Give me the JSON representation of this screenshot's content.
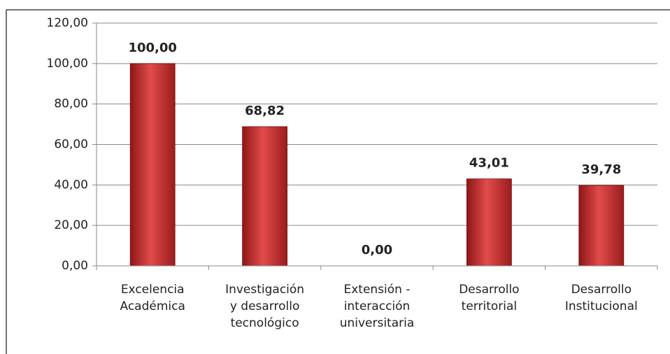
{
  "chart_data": {
    "type": "bar",
    "categories": [
      "Excelencia\nAcadémica",
      "Investigación\ny desarrollo\ntecnológico",
      "Extensión -\ninteracción\nuniversitaria",
      "Desarrollo\nterritorial",
      "Desarrollo\nInstitucional"
    ],
    "values": [
      100,
      68.82,
      0,
      43.01,
      39.78
    ],
    "value_labels": [
      "100,00",
      "68,82",
      "0,00",
      "43,01",
      "39,78"
    ],
    "color": "#c0302e",
    "ylim": [
      0,
      120
    ],
    "yticks": [
      {
        "value": 0,
        "label": "0,00"
      },
      {
        "value": 20,
        "label": "20,00"
      },
      {
        "value": 40,
        "label": "40,00"
      },
      {
        "value": 60,
        "label": "60,00"
      },
      {
        "value": 80,
        "label": "80,00"
      },
      {
        "value": 100,
        "label": "100,00"
      },
      {
        "value": 120,
        "label": "120,00"
      }
    ],
    "grid": true
  }
}
